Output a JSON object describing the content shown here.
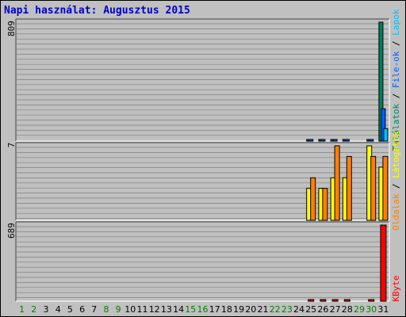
{
  "chart_data": {
    "type": "bar",
    "title": "Napi használat: Augusztus 2015",
    "categories": [
      "1",
      "2",
      "3",
      "4",
      "5",
      "6",
      "7",
      "8",
      "9",
      "10",
      "11",
      "12",
      "13",
      "14",
      "15",
      "16",
      "17",
      "18",
      "19",
      "20",
      "21",
      "22",
      "23",
      "24",
      "25",
      "26",
      "27",
      "28",
      "29",
      "30",
      "31"
    ],
    "weekend_days": [
      "1",
      "2",
      "8",
      "9",
      "15",
      "16",
      "22",
      "23",
      "29",
      "30"
    ],
    "weekend_color": "#008000",
    "weekday_color": "#000000",
    "panels": [
      {
        "id": "hits",
        "ymax": 809,
        "ymax_label": "809",
        "legend": [
          {
            "text": "Találatok",
            "color": "#008060"
          },
          {
            "text": " / ",
            "color": "#000000"
          },
          {
            "text": "File-ok",
            "color": "#0060ff"
          },
          {
            "text": " / ",
            "color": "#000000"
          },
          {
            "text": "Lapok",
            "color": "#00c0ff"
          }
        ],
        "series": [
          {
            "name": "Találatok",
            "color": "#008060",
            "values": [
              0,
              0,
              0,
              0,
              0,
              0,
              0,
              0,
              0,
              0,
              0,
              0,
              0,
              0,
              0,
              0,
              0,
              0,
              0,
              0,
              0,
              0,
              0,
              0,
              5,
              5,
              7,
              4,
              0,
              8,
              809
            ]
          },
          {
            "name": "File-ok",
            "color": "#0060ff",
            "values": [
              0,
              0,
              0,
              0,
              0,
              0,
              0,
              0,
              0,
              0,
              0,
              0,
              0,
              0,
              0,
              0,
              0,
              0,
              0,
              0,
              0,
              0,
              0,
              0,
              4,
              4,
              5,
              3,
              0,
              6,
              220
            ]
          },
          {
            "name": "Lapok",
            "color": "#00c0ff",
            "values": [
              0,
              0,
              0,
              0,
              0,
              0,
              0,
              0,
              0,
              0,
              0,
              0,
              0,
              0,
              0,
              0,
              0,
              0,
              0,
              0,
              0,
              0,
              0,
              0,
              0,
              0,
              0,
              0,
              0,
              0,
              85
            ]
          }
        ]
      },
      {
        "id": "visits",
        "ymax": 7,
        "ymax_label": "7",
        "legend": [
          {
            "text": "Oldalak",
            "color": "#ff8000"
          },
          {
            "text": " / ",
            "color": "#000000"
          },
          {
            "text": "Látogatók",
            "color": "#ffff00"
          }
        ],
        "series": [
          {
            "name": "Látogatók",
            "color": "#ffff00",
            "values": [
              0,
              0,
              0,
              0,
              0,
              0,
              0,
              0,
              0,
              0,
              0,
              0,
              0,
              0,
              0,
              0,
              0,
              0,
              0,
              0,
              0,
              0,
              0,
              0,
              3,
              3,
              4,
              4,
              0,
              7,
              5
            ]
          },
          {
            "name": "Oldalak",
            "color": "#ff8000",
            "values": [
              0,
              0,
              0,
              0,
              0,
              0,
              0,
              0,
              0,
              0,
              0,
              0,
              0,
              0,
              0,
              0,
              0,
              0,
              0,
              0,
              0,
              0,
              0,
              0,
              4,
              3,
              7,
              6,
              0,
              6,
              6
            ]
          }
        ]
      },
      {
        "id": "kbytes",
        "ymax": 689,
        "ymax_label": "689",
        "legend": [
          {
            "text": "KByte",
            "color": "#ff0000"
          }
        ],
        "series": [
          {
            "name": "KByte",
            "color": "#ff0000",
            "values": [
              0,
              0,
              0,
              0,
              0,
              0,
              0,
              0,
              0,
              0,
              0,
              0,
              0,
              0,
              0,
              0,
              0,
              0,
              0,
              0,
              0,
              0,
              0,
              0,
              4,
              4,
              4,
              3,
              0,
              5,
              689
            ]
          }
        ]
      }
    ]
  }
}
